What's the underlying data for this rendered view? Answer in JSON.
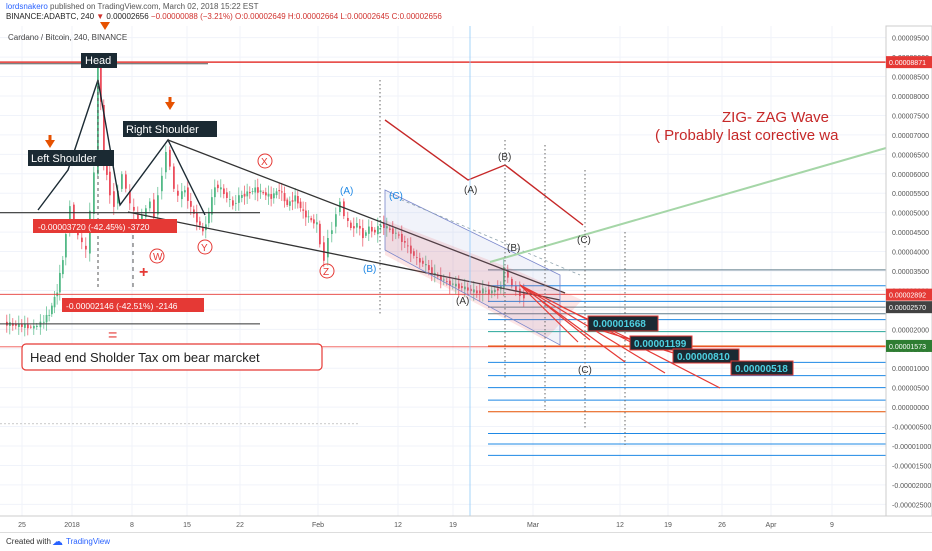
{
  "header": {
    "author": "lordsnakero",
    "published": "published on TradingView.com, March 02, 2018 15:22 EST",
    "symbol_line": "BINANCE:ADABTC, 240",
    "last": "0.00002656",
    "change": "−0.00000088 (−3.21%)",
    "ohlc": "O:0.00002649 H:0.00002664 L:0.00002645 C:0.00002656"
  },
  "chart_data": {
    "type": "candlestick",
    "title": "Cardano / Bitcoin, 240, BINANCE",
    "x_ticks": [
      "25",
      "2018",
      "8",
      "15",
      "22",
      "Feb",
      "12",
      "19",
      "Mar",
      "12",
      "19",
      "26",
      "Apr",
      "9"
    ],
    "y_ticks": [
      "0.00009500",
      "0.00009000",
      "0.00008500",
      "0.00008000",
      "0.00007500",
      "0.00007000",
      "0.00006500",
      "0.00006000",
      "0.00005500",
      "0.00005000",
      "0.00004500",
      "0.00004000",
      "0.00003500",
      "0.00003000",
      "0.00002500",
      "0.00002000",
      "0.00001500",
      "0.00001000",
      "0.00000500",
      "0.00000000",
      "-0.00000500",
      "-0.00001000",
      "-0.00001500",
      "-0.00002000",
      "-0.00002500"
    ],
    "ylim": [
      -2.8e-05,
      9.8e-05
    ],
    "price_tags": [
      {
        "text": "0.00008871",
        "value": 8.871e-05,
        "color": "#e53935"
      },
      {
        "text": "0.00002892",
        "value": 2.892e-05,
        "color": "#e53935"
      },
      {
        "text": "0.00002570",
        "value": 2.57e-05,
        "color": "#424242"
      },
      {
        "text": "0.00001573",
        "value": 1.573e-05,
        "color": "#2e7d32"
      }
    ],
    "pattern_labels": [
      "Head",
      "Left Shoulder",
      "Right Shoulder"
    ],
    "measurements": [
      "-0.00003720 (-42.45%) -3720",
      "-0.00002146 (-42.51%) -2146"
    ],
    "wave_labels": {
      "W": "W",
      "X": "X",
      "Y": "Y",
      "Z": "Z",
      "A": "(A)",
      "B": "(B)",
      "C": "(C)"
    },
    "targets": [
      "0.00001668",
      "0.00001199",
      "0.00000810",
      "0.00000518"
    ],
    "annotation_zigzag_1": "ZIG- ZAG Wave",
    "annotation_zigzag_2": "( Probably last corective wa",
    "annotation_main": "Head end Sholder Tax om bear marcket",
    "equals_sign": "=",
    "plus_sign": "+"
  },
  "footer": {
    "created_with": "Created with",
    "brand": "TradingView"
  }
}
